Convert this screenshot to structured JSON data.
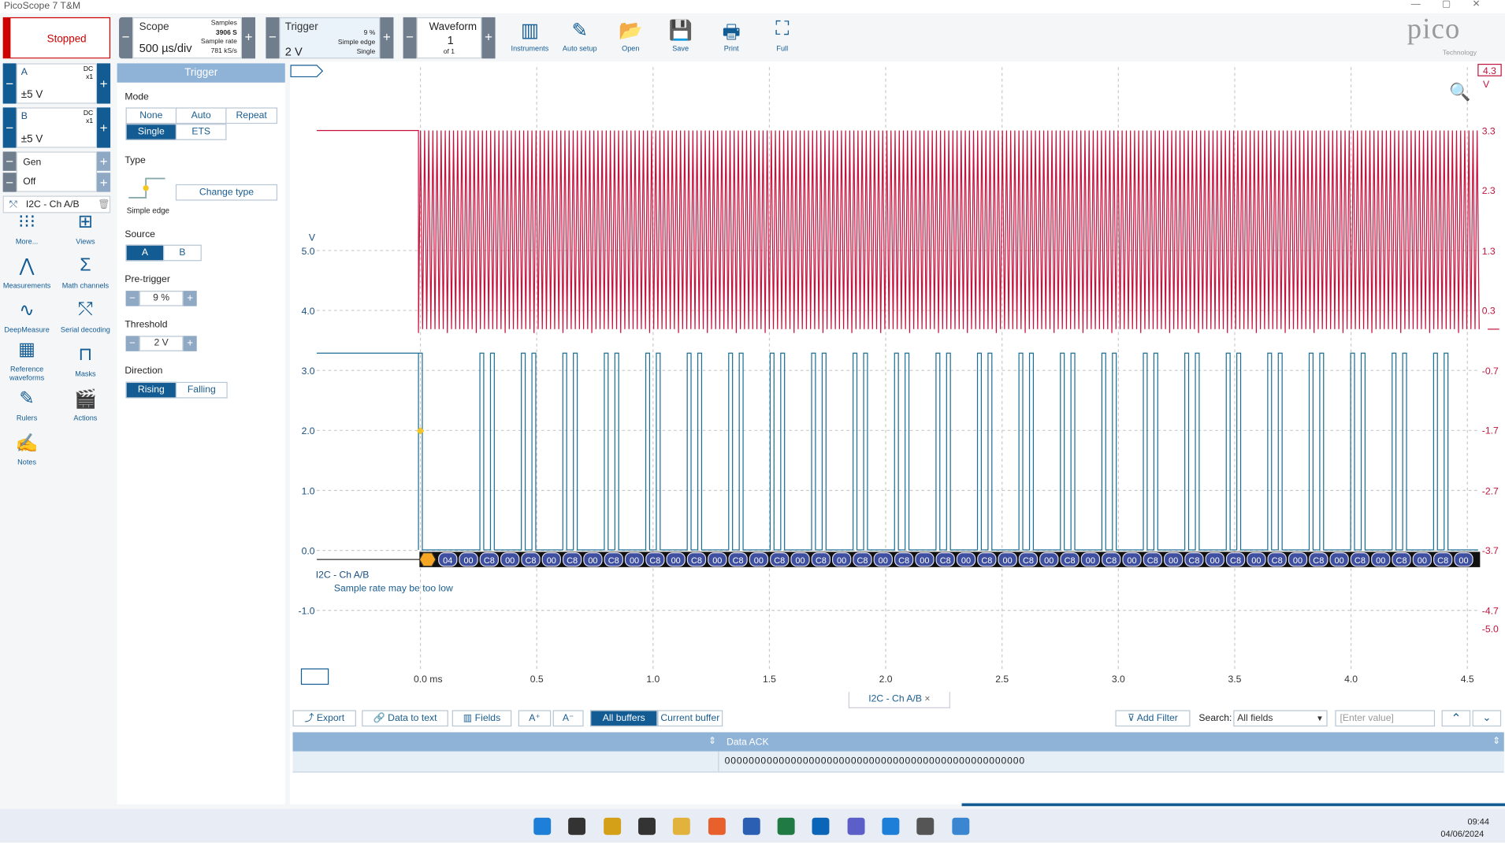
{
  "window": {
    "title": "PicoScope 7 T&M"
  },
  "toolbar": {
    "status": "Stopped",
    "scope": {
      "label": "Scope",
      "timebase": "500 µs/div",
      "samples_label": "Samples",
      "samples": "3906 S",
      "rate_label": "Sample rate",
      "rate": "781 kS/s"
    },
    "trigger": {
      "label": "Trigger",
      "level": "2 V",
      "pretrigger": "9 %",
      "type": "Simple edge",
      "mode": "Single"
    },
    "waveform": {
      "label": "Waveform",
      "current": "1",
      "total": "of 1"
    },
    "buttons": [
      "Instruments",
      "Auto setup",
      "Open",
      "Save",
      "Print",
      "Full"
    ],
    "logo": "pico",
    "logo_sub": "Technology"
  },
  "channels": [
    {
      "name": "A",
      "coupling": "DC",
      "probe": "x1",
      "range": "±5 V"
    },
    {
      "name": "B",
      "coupling": "DC",
      "probe": "x1",
      "range": "±5 V"
    }
  ],
  "generator": {
    "label": "Gen",
    "state": "Off"
  },
  "decoder": "I2C - Ch A/B",
  "tools": [
    "More...",
    "Views",
    "Measurements",
    "Math channels",
    "DeepMeasure",
    "Serial decoding",
    "Reference waveforms",
    "Masks",
    "Rulers",
    "Actions",
    "Notes"
  ],
  "trigger_panel": {
    "title": "Trigger",
    "mode_label": "Mode",
    "modes": [
      "None",
      "Auto",
      "Repeat",
      "Single",
      "ETS"
    ],
    "type_label": "Type",
    "type": "Simple edge",
    "change_type": "Change type",
    "source_label": "Source",
    "sources": [
      "A",
      "B"
    ],
    "pretrigger_label": "Pre-trigger",
    "pretrigger": "9 %",
    "threshold_label": "Threshold",
    "threshold": "2 V",
    "direction_label": "Direction",
    "directions": [
      "Rising",
      "Falling"
    ]
  },
  "scope_view": {
    "left_unit": "V",
    "left_ticks": [
      "5.0",
      "4.0",
      "3.0",
      "2.0",
      "1.0",
      "0.0",
      "-1.0"
    ],
    "right_marker": "4.3",
    "right_unit": "V",
    "right_ticks": [
      "3.3",
      "2.3",
      "1.3",
      "0.3",
      "-0.7",
      "-1.7",
      "-2.7",
      "-3.7",
      "-4.7",
      "-5.0"
    ],
    "x_ticks": [
      "0.0 ms",
      "0.5",
      "1.0",
      "1.5",
      "2.0",
      "2.5",
      "3.0",
      "3.5",
      "4.0",
      "4.5"
    ],
    "decode_label": "I2C - Ch A/B",
    "warning": "Sample rate may be too low",
    "packets": [
      "04",
      "00",
      "C8",
      "00",
      "C8",
      "00",
      "C8",
      "00",
      "C8",
      "00",
      "C8",
      "00",
      "C8",
      "00",
      "C8",
      "00",
      "C8",
      "00",
      "C8",
      "00",
      "C8",
      "00",
      "C8",
      "00",
      "C8",
      "00",
      "C8",
      "00",
      "C8",
      "00",
      "C8",
      "00",
      "C8",
      "00",
      "C8",
      "00",
      "C8",
      "00",
      "C8",
      "00",
      "C8",
      "00",
      "C8",
      "00",
      "C8",
      "00",
      "C8",
      "00",
      "C8",
      "00"
    ]
  },
  "table_panel": {
    "tab": "I2C - Ch A/B",
    "buttons": [
      "Export",
      "Data to text",
      "Fields",
      "All buffers",
      "Current buffer",
      "Add Filter"
    ],
    "search_label": "Search:",
    "search_field": "All fields",
    "search_placeholder": "[Enter value]",
    "columns": [
      "Data ACK"
    ],
    "rows": [
      [
        "00000000000000000000000000000000000000000000000000"
      ]
    ]
  },
  "taskbar": {
    "time": "09:44",
    "date": "04/06/2024"
  }
}
